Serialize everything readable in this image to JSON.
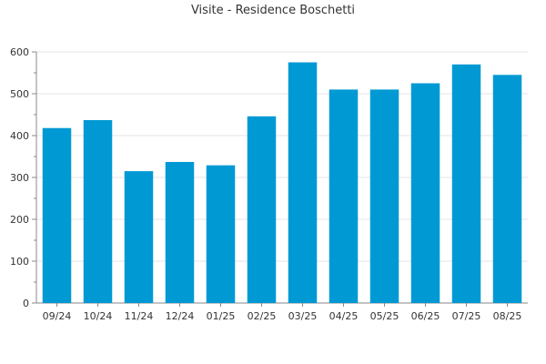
{
  "chart_data": {
    "type": "bar",
    "title": "Visite - Residence Boschetti",
    "xlabel": "",
    "ylabel": "",
    "categories": [
      "09/24",
      "10/24",
      "11/24",
      "12/24",
      "01/25",
      "02/25",
      "03/25",
      "04/25",
      "05/25",
      "06/25",
      "07/25",
      "08/25"
    ],
    "series": [
      {
        "values": [
          418,
          437,
          315,
          337,
          329,
          446,
          575,
          510,
          510,
          525,
          570,
          545
        ],
        "color": "#0099d4"
      }
    ],
    "ylim": [
      0,
      600
    ],
    "yticks": [
      0,
      100,
      200,
      300,
      400,
      500,
      600
    ],
    "grid": true,
    "legend": "none"
  }
}
